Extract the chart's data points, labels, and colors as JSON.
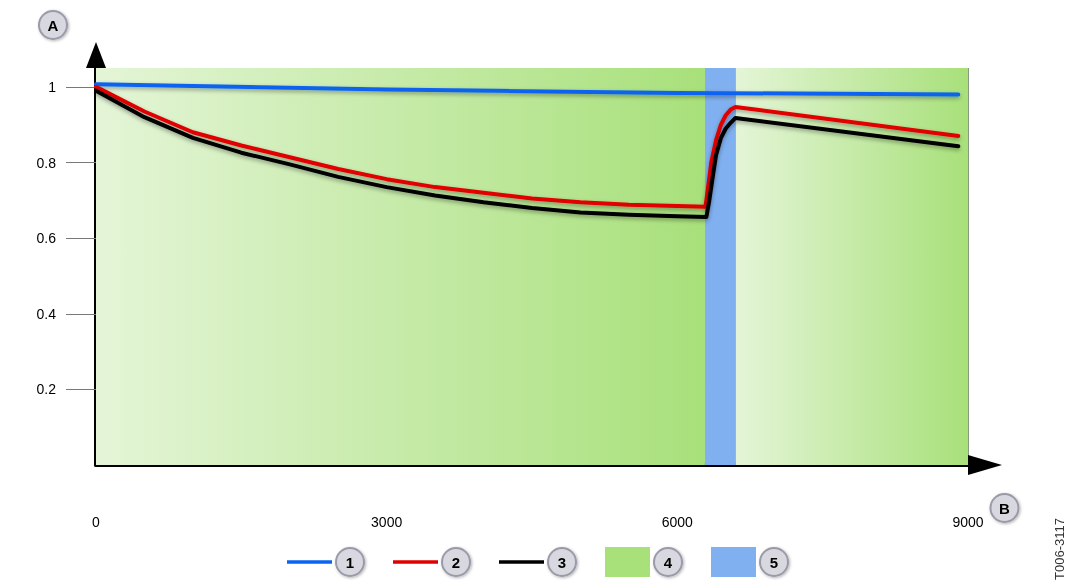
{
  "chart_data": {
    "type": "line",
    "xlabel": "B",
    "ylabel": "A",
    "xlim": [
      0,
      9000
    ],
    "xticks": [
      0,
      3000,
      6000,
      9000
    ],
    "ylim": [
      0,
      1.05
    ],
    "yticks": [
      0.2,
      0.4,
      0.6,
      0.8,
      1
    ],
    "grid": true,
    "legend": "bottom",
    "marker": "none",
    "line_style": "solid",
    "series": [
      {
        "name": "1",
        "color": "#0a64f0",
        "x": [
          0,
          3000,
          6000,
          8900
        ],
        "values": [
          1.007,
          0.993,
          0.984,
          0.98
        ]
      },
      {
        "name": "2",
        "color": "#e00000",
        "x": [
          0,
          500,
          1000,
          1500,
          2000,
          2500,
          3000,
          3500,
          4000,
          4500,
          5000,
          5500,
          6000,
          6290,
          6310,
          6350,
          6400,
          6450,
          6500,
          6550,
          6600,
          8900
        ],
        "values": [
          1.0,
          0.935,
          0.88,
          0.845,
          0.814,
          0.783,
          0.756,
          0.735,
          0.72,
          0.705,
          0.695,
          0.688,
          0.685,
          0.683,
          0.72,
          0.8,
          0.86,
          0.9,
          0.925,
          0.94,
          0.947,
          0.87
        ]
      },
      {
        "name": "3",
        "color": "#000000",
        "x": [
          0,
          500,
          1000,
          1500,
          2000,
          2500,
          3000,
          3500,
          4000,
          4500,
          5000,
          5500,
          6000,
          6300,
          6330,
          6370,
          6400,
          6450,
          6500,
          6550,
          6600,
          8900
        ],
        "values": [
          0.99,
          0.92,
          0.865,
          0.826,
          0.795,
          0.762,
          0.735,
          0.713,
          0.695,
          0.68,
          0.668,
          0.662,
          0.658,
          0.656,
          0.7,
          0.77,
          0.82,
          0.865,
          0.89,
          0.905,
          0.918,
          0.843
        ]
      }
    ],
    "bands": [
      {
        "axis": "x",
        "from": 0,
        "to": 6285,
        "label": "4",
        "color": "#a8e07a"
      },
      {
        "axis": "x",
        "from": 6285,
        "to": 6605,
        "label": "5",
        "color": "#80b0f0"
      },
      {
        "axis": "x",
        "from": 6605,
        "to": 9000,
        "color": "#a8e07a"
      }
    ],
    "annotations": [
      "T006-3117"
    ]
  }
}
